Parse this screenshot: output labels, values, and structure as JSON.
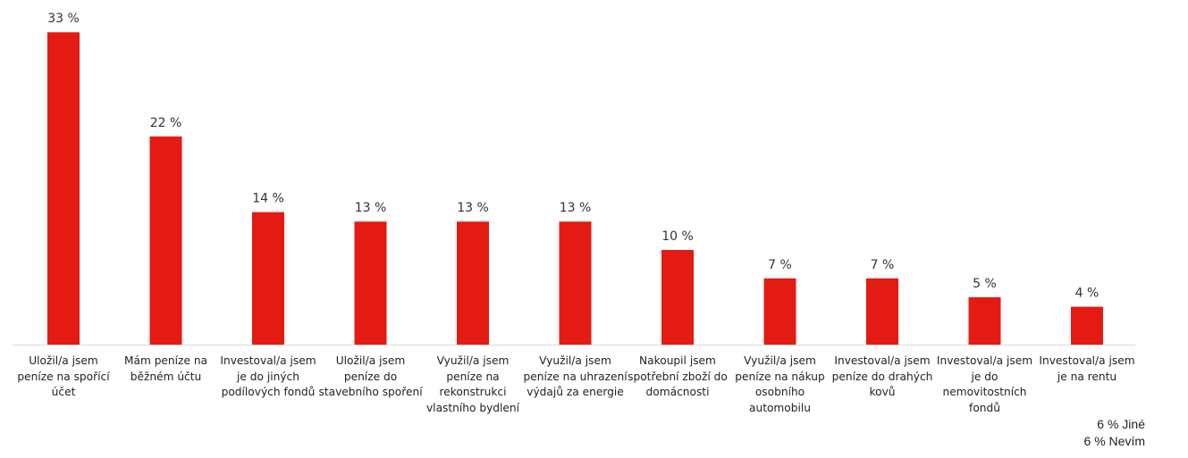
{
  "chart_data": {
    "type": "bar",
    "bar_color": "#E31B13",
    "axis_color": "#D9D9D9",
    "ylim": [
      0,
      35
    ],
    "categories": [
      [
        "Uložil/a jsem",
        "peníze na spořící",
        "účet"
      ],
      [
        "Mám peníze na",
        "běžném účtu"
      ],
      [
        "Investoval/a jsem",
        "je do jiných",
        "podílových fondů"
      ],
      [
        "Uložil/a jsem",
        "peníze do",
        "stavebního spoření"
      ],
      [
        "Využil/a jsem",
        "peníze na",
        "rekonstrukci",
        "vlastního bydlení"
      ],
      [
        "Využil/a jsem",
        "peníze na uhrazení",
        "výdajů za energie"
      ],
      [
        "Nakoupil jsem",
        "spotřební zboží do",
        "domácnosti"
      ],
      [
        "Využil/a jsem",
        "peníze na nákup",
        "osobního",
        "automobilu"
      ],
      [
        "Investoval/a jsem",
        "peníze do drahých",
        "kovů"
      ],
      [
        "Investoval/a jsem",
        "je do",
        "nemovitostních",
        "fondů"
      ],
      [
        "Investoval/a jsem",
        "je na rentu"
      ]
    ],
    "values": [
      33,
      22,
      14,
      13,
      13,
      13,
      10,
      7,
      7,
      5,
      4
    ],
    "value_labels": [
      "33 %",
      "22 %",
      "14 %",
      "13 %",
      "13 %",
      "13 %",
      "10 %",
      "7 %",
      "7 %",
      "5 %",
      "4 %"
    ]
  },
  "notes": [
    "6 % Jiné",
    "6 % Nevím"
  ]
}
